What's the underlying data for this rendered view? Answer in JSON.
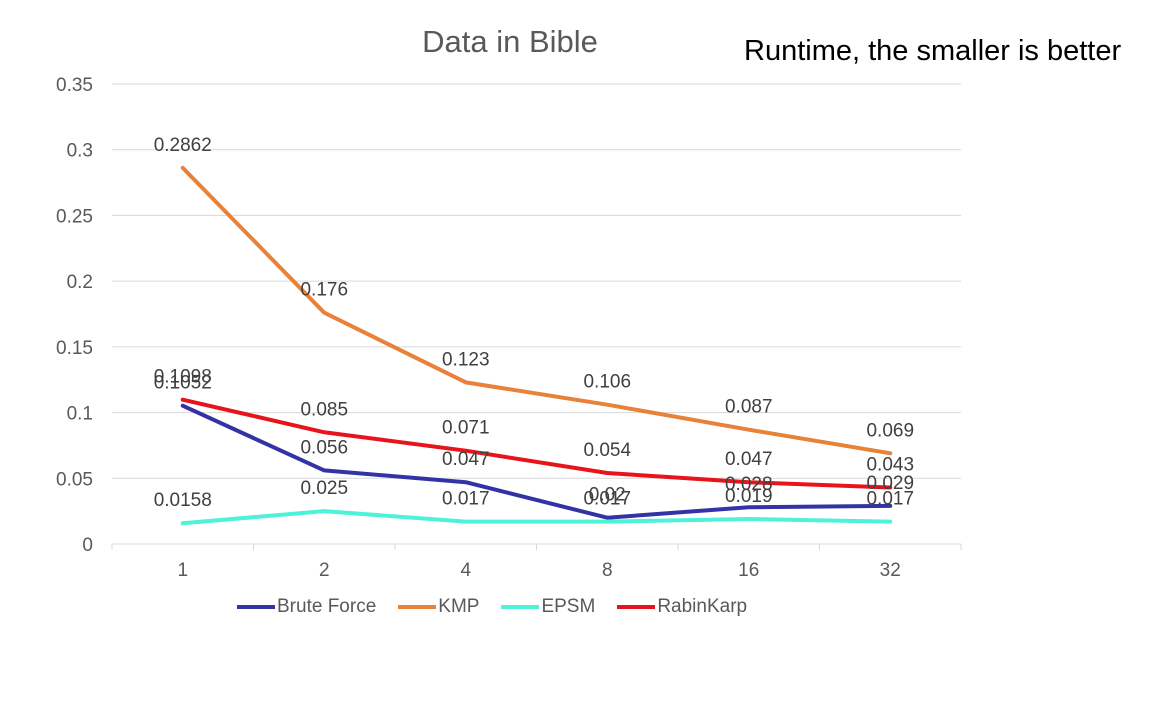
{
  "chart_data": {
    "type": "line",
    "title": "Data in Bible",
    "annotation": "Runtime, the smaller is better",
    "categories": [
      "1",
      "2",
      "4",
      "8",
      "16",
      "32"
    ],
    "ylim": [
      0,
      0.35
    ],
    "yticks": [
      "0",
      "0.05",
      "0.1",
      "0.15",
      "0.2",
      "0.25",
      "0.3",
      "0.35"
    ],
    "grid": true,
    "legend_position": "bottom",
    "series": [
      {
        "name": "Brute Force",
        "color": "#3333A6",
        "values": [
          0.1052,
          0.056,
          0.047,
          0.02,
          0.028,
          0.029
        ],
        "labels": [
          "0.1052",
          "0.056",
          "0.047",
          "0.02",
          "0.028",
          "0.029"
        ]
      },
      {
        "name": "KMP",
        "color": "#E8823A",
        "values": [
          0.2862,
          0.176,
          0.123,
          0.106,
          0.087,
          0.069
        ],
        "labels": [
          "0.2862",
          "0.176",
          "0.123",
          "0.106",
          "0.087",
          "0.069"
        ]
      },
      {
        "name": "EPSM",
        "color": "#4DF2D9",
        "values": [
          0.0158,
          0.025,
          0.017,
          0.017,
          0.019,
          0.017
        ],
        "labels": [
          "0.0158",
          "0.025",
          "0.017",
          "0.017",
          "0.019",
          "0.017"
        ]
      },
      {
        "name": "RabinKarp",
        "color": "#E8141B",
        "values": [
          0.1098,
          0.085,
          0.071,
          0.054,
          0.047,
          0.043
        ],
        "labels": [
          "0.1098",
          "0.085",
          "0.071",
          "0.054",
          "0.047",
          "0.043"
        ]
      }
    ]
  }
}
